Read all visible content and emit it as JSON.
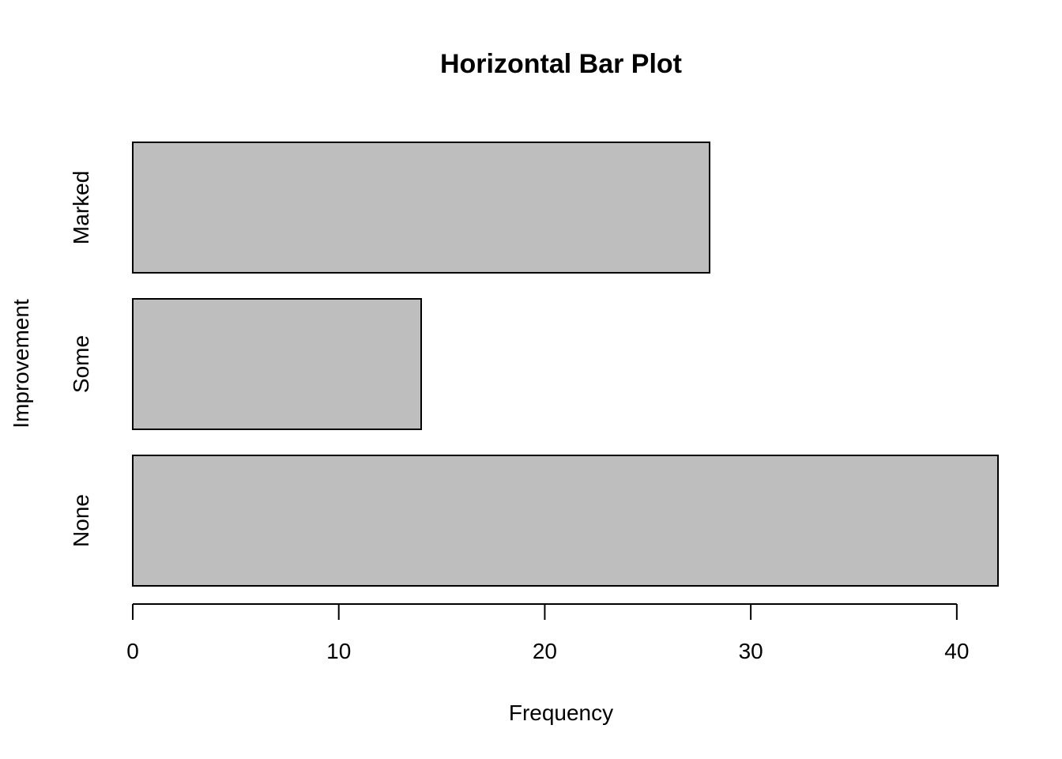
{
  "chart_data": {
    "type": "bar",
    "orientation": "horizontal",
    "title": "Horizontal Bar Plot",
    "xlabel": "Frequency",
    "ylabel": "Improvement",
    "categories": [
      "None",
      "Some",
      "Marked"
    ],
    "values": [
      42,
      14,
      28
    ],
    "xlim": [
      0,
      42
    ],
    "xticks": [
      0,
      10,
      20,
      30,
      40
    ],
    "xtick_labels": [
      "0",
      "10",
      "20",
      "30",
      "40"
    ],
    "bar_color": "#bebebe",
    "border_color": "#000000",
    "grid": false
  }
}
